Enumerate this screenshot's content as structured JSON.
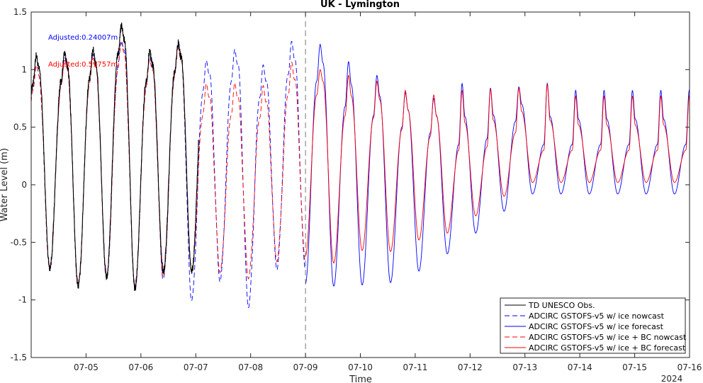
{
  "chart_data": {
    "type": "line",
    "title": "UK - Lymington",
    "xlabel": "Time",
    "ylabel": "Water Level (m)",
    "year_label": "2024",
    "xlim": [
      "07-04 00:00",
      "07-16 00:00"
    ],
    "ylim": [
      -1.5,
      1.5
    ],
    "x_ticks": [
      "07-05",
      "07-06",
      "07-07",
      "07-08",
      "07-09",
      "07-10",
      "07-11",
      "07-12",
      "07-13",
      "07-14",
      "07-15",
      "07-16"
    ],
    "y_ticks": [
      "-1.5",
      "-1",
      "-0.5",
      "0",
      "0.5",
      "1",
      "1.5"
    ],
    "forecast_start": "07-09 00:00",
    "annotations": [
      {
        "text": "Adjusted:0.24007m",
        "color": "#0000ff"
      },
      {
        "text": "Adjusted:0.59757m",
        "color": "#ff0000"
      }
    ],
    "legend_position": "bottom-right",
    "series": [
      {
        "name": "TD UNESCO Obs.",
        "color": "#000000",
        "style": "solid",
        "range": [
          "07-04 00:00",
          "07-07 01:12"
        ],
        "highs": [
          1.12,
          1.15,
          1.17,
          1.38,
          1.16,
          1.23
        ],
        "lows": [
          -0.88,
          -0.72,
          -0.88,
          -0.8,
          -0.9,
          -0.75
        ]
      },
      {
        "name": "ADCIRC GSTOFS-v5 w/ ice nowcast",
        "color": "#0000ff",
        "style": "dashed",
        "range": [
          "07-04 00:00",
          "07-09 00:00"
        ],
        "highs": [
          1.05,
          1.12,
          1.15,
          1.27,
          1.13,
          1.22,
          1.08,
          1.17,
          1.03,
          1.23
        ],
        "lows": [
          -0.85,
          -0.74,
          -0.87,
          -0.82,
          -0.88,
          -0.82,
          -1.0,
          -0.83,
          -1.05,
          -0.72
        ]
      },
      {
        "name": "ADCIRC GSTOFS-v5 w/ ice forecast",
        "color": "#0000ff",
        "style": "solid",
        "range": [
          "07-09 00:00",
          "07-16 00:00"
        ],
        "highs": [
          1.22,
          1.07,
          0.95,
          0.8,
          0.75,
          0.88,
          0.84,
          0.85,
          0.88,
          0.82
        ],
        "lows": [
          -0.86,
          -0.88,
          -0.87,
          -0.85,
          -0.75,
          -0.6,
          -0.42,
          -0.23,
          -0.08
        ],
        "mids": [
          0.9,
          0.68,
          0.6,
          0.5,
          0.45,
          0.35,
          0.4,
          0.55,
          0.35
        ]
      },
      {
        "name": "ADCIRC GSTOFS-v5 w/ ice + BC nowcast",
        "color": "#ff0000",
        "style": "dashed",
        "range": [
          "07-04 00:00",
          "07-09 00:00"
        ],
        "highs": [
          1.05,
          1.1,
          1.12,
          1.25,
          1.1,
          1.2,
          0.88,
          0.88,
          0.85,
          1.05
        ],
        "lows": [
          -0.85,
          -0.72,
          -0.85,
          -0.8,
          -0.88,
          -0.8,
          -0.75,
          -0.75,
          -0.8,
          -0.65
        ]
      },
      {
        "name": "ADCIRC GSTOFS-v5 w/ ice + BC forecast",
        "color": "#ff0000",
        "style": "solid",
        "range": [
          "07-09 00:00",
          "07-16 00:00"
        ],
        "highs": [
          1.0,
          0.95,
          0.9,
          0.82,
          0.78,
          0.82,
          0.83,
          0.84,
          0.87,
          0.77
        ],
        "lows": [
          -0.62,
          -0.68,
          -0.57,
          -0.58,
          -0.48,
          -0.42,
          -0.27,
          -0.1,
          0.02
        ],
        "mids": [
          0.78,
          0.6,
          0.58,
          0.48,
          0.42,
          0.3,
          0.33,
          0.45,
          0.3
        ]
      }
    ]
  }
}
